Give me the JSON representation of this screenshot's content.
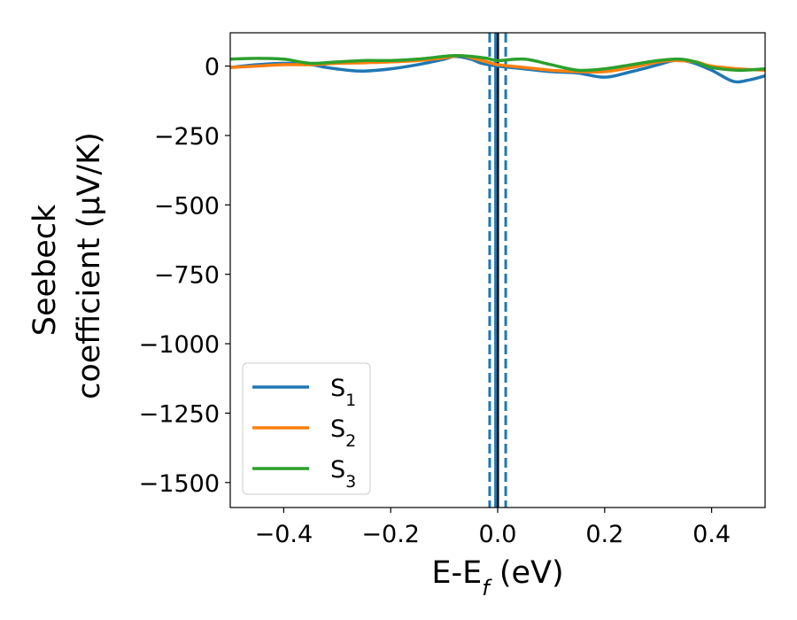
{
  "chart_data": {
    "type": "line",
    "xlabel": "E-E",
    "xlabel_sub": "f",
    "xlabel_unit": " (eV)",
    "ylabel_line1": "Seebeck",
    "ylabel_line2": "coefficient  (μV/K)",
    "xlim": [
      -0.5,
      0.5
    ],
    "ylim": [
      -1590,
      120
    ],
    "x_ticks": [
      -0.4,
      -0.2,
      0.0,
      0.2,
      0.4
    ],
    "x_tick_labels": [
      "−0.4",
      "−0.2",
      "0.0",
      "0.2",
      "0.4"
    ],
    "y_ticks": [
      0,
      -250,
      -500,
      -750,
      -1000,
      -1250,
      -1500
    ],
    "y_tick_labels": [
      "0",
      "−250",
      "−500",
      "−750",
      "−1000",
      "−1250",
      "−1500"
    ],
    "grid": false,
    "legend_position": "lower-left",
    "series": [
      {
        "label": "S",
        "label_sub": "1",
        "color": "#1f77b4",
        "x": [
          -0.5,
          -0.45,
          -0.4,
          -0.35,
          -0.32,
          -0.28,
          -0.25,
          -0.2,
          -0.15,
          -0.1,
          -0.08,
          -0.05,
          -0.03,
          0.0,
          0.05,
          0.1,
          0.15,
          0.2,
          0.25,
          0.3,
          0.33,
          0.36,
          0.4,
          0.44,
          0.47,
          0.5
        ],
        "y": [
          -5,
          5,
          10,
          5,
          -5,
          -15,
          -18,
          -10,
          5,
          25,
          35,
          25,
          10,
          0,
          -10,
          -20,
          -25,
          -40,
          -20,
          5,
          20,
          15,
          -15,
          -55,
          -50,
          -35
        ]
      },
      {
        "label": "S",
        "label_sub": "2",
        "color": "#ff7f0e",
        "x": [
          -0.5,
          -0.45,
          -0.4,
          -0.35,
          -0.3,
          -0.25,
          -0.2,
          -0.15,
          -0.1,
          -0.07,
          -0.05,
          -0.02,
          0.0,
          0.05,
          0.1,
          0.15,
          0.2,
          0.25,
          0.3,
          0.33,
          0.37,
          0.4,
          0.45,
          0.5
        ],
        "y": [
          -5,
          0,
          5,
          5,
          10,
          12,
          15,
          20,
          30,
          38,
          30,
          15,
          5,
          -5,
          -15,
          -20,
          -20,
          -5,
          15,
          20,
          15,
          0,
          -10,
          -15
        ]
      },
      {
        "label": "S",
        "label_sub": "3",
        "color": "#2ca02c",
        "x": [
          -0.5,
          -0.45,
          -0.4,
          -0.35,
          -0.3,
          -0.25,
          -0.2,
          -0.15,
          -0.1,
          -0.08,
          -0.05,
          -0.02,
          0.0,
          0.05,
          0.1,
          0.15,
          0.2,
          0.25,
          0.3,
          0.34,
          0.37,
          0.4,
          0.45,
          0.5
        ],
        "y": [
          25,
          28,
          25,
          10,
          15,
          20,
          20,
          25,
          35,
          38,
          35,
          28,
          20,
          25,
          5,
          -15,
          -10,
          5,
          20,
          25,
          15,
          -5,
          -15,
          -10
        ]
      }
    ],
    "vertical_lines": [
      {
        "x": 0.0,
        "color": "#000000",
        "style": "solid"
      },
      {
        "x": -0.015,
        "color": "#1f77b4",
        "style": "dashed"
      },
      {
        "x": 0.015,
        "color": "#1f77b4",
        "style": "dashed"
      },
      {
        "x": -0.004,
        "color": "#1f77b4",
        "style": "solid"
      }
    ]
  }
}
